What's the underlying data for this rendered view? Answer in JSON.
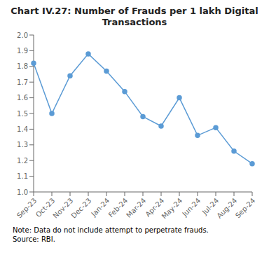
{
  "chart_data": {
    "type": "line",
    "title": "Chart IV.27: Number of Frauds per 1 lakh Digital\nTransactions",
    "categories": [
      "Sep-23",
      "Oct-23",
      "Nov-23",
      "Dec-23",
      "Jan-24",
      "Feb-24",
      "Mar-24",
      "Apr-24",
      "May-24",
      "Jun-24",
      "Jul-24",
      "Aug-24",
      "Sep-24"
    ],
    "values": [
      1.82,
      1.5,
      1.74,
      1.88,
      1.77,
      1.64,
      1.48,
      1.42,
      1.6,
      1.36,
      1.41,
      1.26,
      1.18
    ],
    "color": "#5b9bd5",
    "marker": "circle",
    "ylim": [
      1.0,
      2.0
    ],
    "yticks": [
      {
        "value": 1.0,
        "label": "1.0"
      },
      1.1,
      1.2,
      1.3,
      1.4,
      1.5,
      1.6,
      1.7,
      1.8,
      1.9,
      {
        "value": 2.0,
        "label": "2.0"
      }
    ],
    "grid": false,
    "annotations": [
      "Note: Data do not include attempt to perpetrate frauds.",
      "Source: RBI."
    ]
  }
}
